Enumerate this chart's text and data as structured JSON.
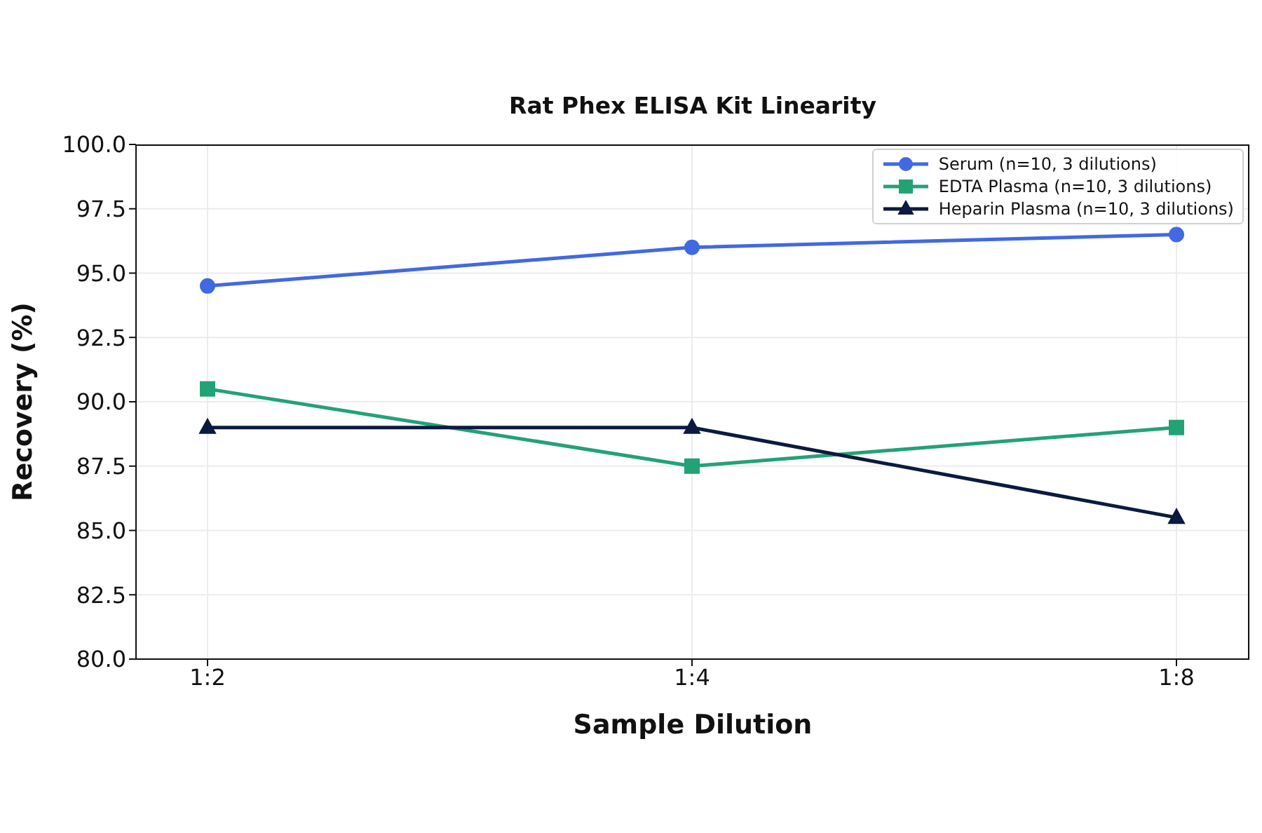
{
  "chart_data": {
    "type": "line",
    "title": "Rat Phex ELISA Kit Linearity",
    "xlabel": "Sample Dilution",
    "ylabel": "Recovery (%)",
    "categories": [
      "1:2",
      "1:4",
      "1:8"
    ],
    "series": [
      {
        "name": "Serum (n=10, 3 dilutions)",
        "color": "#4169e1",
        "marker": "circle",
        "values": [
          94.5,
          96.0,
          96.5
        ]
      },
      {
        "name": "EDTA Plasma (n=10, 3 dilutions)",
        "color": "#23a275",
        "marker": "square",
        "values": [
          90.5,
          87.5,
          89.0
        ]
      },
      {
        "name": "Heparin Plasma (n=10, 3 dilutions)",
        "color": "#0b1a3f",
        "marker": "triangle",
        "values": [
          89.0,
          89.0,
          85.5
        ]
      }
    ],
    "ylim": [
      80,
      100
    ],
    "yticks": [
      {
        "value": 80,
        "label": "80.0"
      },
      {
        "value": 82.5,
        "label": "82.5"
      },
      {
        "value": 85,
        "label": "85.0"
      },
      {
        "value": 87.5,
        "label": "87.5"
      },
      {
        "value": 90,
        "label": "90.0"
      },
      {
        "value": 92.5,
        "label": "92.5"
      },
      {
        "value": 95,
        "label": "95.0"
      },
      {
        "value": 97.5,
        "label": "97.5"
      },
      {
        "value": 100,
        "label": "100.0"
      }
    ],
    "grid": true,
    "legend": "top right",
    "line_style": "solid"
  }
}
